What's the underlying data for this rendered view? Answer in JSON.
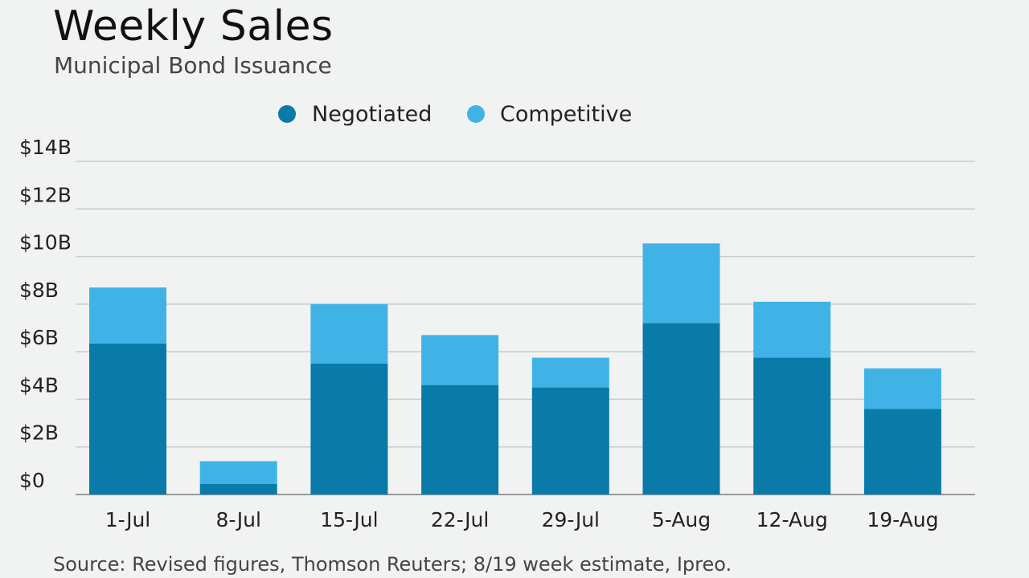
{
  "chart_data": {
    "type": "bar",
    "stacked": true,
    "title": "Weekly Sales",
    "subtitle": "Municipal Bond Issuance",
    "source": "Source: Revised figures, Thomson Reuters; 8/19 week estimate, Ipreo.",
    "categories": [
      "1-Jul",
      "8-Jul",
      "15-Jul",
      "22-Jul",
      "29-Jul",
      "5-Aug",
      "12-Aug",
      "19-Aug"
    ],
    "series": [
      {
        "name": "Negotiated",
        "color": "#0a7aa8",
        "values": [
          6.35,
          0.45,
          5.5,
          4.6,
          4.5,
          7.2,
          5.75,
          3.6
        ]
      },
      {
        "name": "Competitive",
        "color": "#3fb3e6",
        "values": [
          2.35,
          0.95,
          2.5,
          2.1,
          1.25,
          3.35,
          2.35,
          1.7
        ]
      }
    ],
    "ylim": [
      0,
      14
    ],
    "yticks": [
      0,
      2,
      4,
      6,
      8,
      10,
      12,
      14
    ],
    "ytick_labels": [
      "$0",
      "$2B",
      "$4B",
      "$6B",
      "$8B",
      "$10B",
      "$12B",
      "$14B"
    ],
    "grid": true,
    "legend_position": "top-center"
  }
}
